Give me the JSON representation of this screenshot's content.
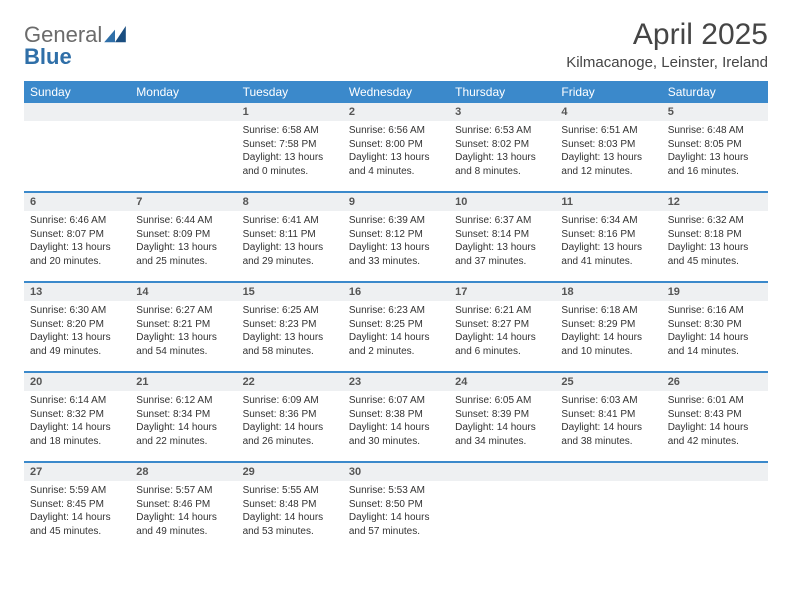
{
  "brand": {
    "part1": "General",
    "part2": "Blue"
  },
  "title": "April 2025",
  "location": "Kilmacanoge, Leinster, Ireland",
  "colors": {
    "header_bg": "#3b89cb",
    "header_text": "#ffffff",
    "daynum_bg": "#eef0f2",
    "text": "#333333",
    "brand_gray": "#6b6b6b",
    "brand_blue": "#2f6fa8"
  },
  "dayHeaders": [
    "Sunday",
    "Monday",
    "Tuesday",
    "Wednesday",
    "Thursday",
    "Friday",
    "Saturday"
  ],
  "weeks": [
    [
      null,
      null,
      {
        "d": "1",
        "sr": "6:58 AM",
        "ss": "7:58 PM",
        "dl": "13 hours and 0 minutes."
      },
      {
        "d": "2",
        "sr": "6:56 AM",
        "ss": "8:00 PM",
        "dl": "13 hours and 4 minutes."
      },
      {
        "d": "3",
        "sr": "6:53 AM",
        "ss": "8:02 PM",
        "dl": "13 hours and 8 minutes."
      },
      {
        "d": "4",
        "sr": "6:51 AM",
        "ss": "8:03 PM",
        "dl": "13 hours and 12 minutes."
      },
      {
        "d": "5",
        "sr": "6:48 AM",
        "ss": "8:05 PM",
        "dl": "13 hours and 16 minutes."
      }
    ],
    [
      {
        "d": "6",
        "sr": "6:46 AM",
        "ss": "8:07 PM",
        "dl": "13 hours and 20 minutes."
      },
      {
        "d": "7",
        "sr": "6:44 AM",
        "ss": "8:09 PM",
        "dl": "13 hours and 25 minutes."
      },
      {
        "d": "8",
        "sr": "6:41 AM",
        "ss": "8:11 PM",
        "dl": "13 hours and 29 minutes."
      },
      {
        "d": "9",
        "sr": "6:39 AM",
        "ss": "8:12 PM",
        "dl": "13 hours and 33 minutes."
      },
      {
        "d": "10",
        "sr": "6:37 AM",
        "ss": "8:14 PM",
        "dl": "13 hours and 37 minutes."
      },
      {
        "d": "11",
        "sr": "6:34 AM",
        "ss": "8:16 PM",
        "dl": "13 hours and 41 minutes."
      },
      {
        "d": "12",
        "sr": "6:32 AM",
        "ss": "8:18 PM",
        "dl": "13 hours and 45 minutes."
      }
    ],
    [
      {
        "d": "13",
        "sr": "6:30 AM",
        "ss": "8:20 PM",
        "dl": "13 hours and 49 minutes."
      },
      {
        "d": "14",
        "sr": "6:27 AM",
        "ss": "8:21 PM",
        "dl": "13 hours and 54 minutes."
      },
      {
        "d": "15",
        "sr": "6:25 AM",
        "ss": "8:23 PM",
        "dl": "13 hours and 58 minutes."
      },
      {
        "d": "16",
        "sr": "6:23 AM",
        "ss": "8:25 PM",
        "dl": "14 hours and 2 minutes."
      },
      {
        "d": "17",
        "sr": "6:21 AM",
        "ss": "8:27 PM",
        "dl": "14 hours and 6 minutes."
      },
      {
        "d": "18",
        "sr": "6:18 AM",
        "ss": "8:29 PM",
        "dl": "14 hours and 10 minutes."
      },
      {
        "d": "19",
        "sr": "6:16 AM",
        "ss": "8:30 PM",
        "dl": "14 hours and 14 minutes."
      }
    ],
    [
      {
        "d": "20",
        "sr": "6:14 AM",
        "ss": "8:32 PM",
        "dl": "14 hours and 18 minutes."
      },
      {
        "d": "21",
        "sr": "6:12 AM",
        "ss": "8:34 PM",
        "dl": "14 hours and 22 minutes."
      },
      {
        "d": "22",
        "sr": "6:09 AM",
        "ss": "8:36 PM",
        "dl": "14 hours and 26 minutes."
      },
      {
        "d": "23",
        "sr": "6:07 AM",
        "ss": "8:38 PM",
        "dl": "14 hours and 30 minutes."
      },
      {
        "d": "24",
        "sr": "6:05 AM",
        "ss": "8:39 PM",
        "dl": "14 hours and 34 minutes."
      },
      {
        "d": "25",
        "sr": "6:03 AM",
        "ss": "8:41 PM",
        "dl": "14 hours and 38 minutes."
      },
      {
        "d": "26",
        "sr": "6:01 AM",
        "ss": "8:43 PM",
        "dl": "14 hours and 42 minutes."
      }
    ],
    [
      {
        "d": "27",
        "sr": "5:59 AM",
        "ss": "8:45 PM",
        "dl": "14 hours and 45 minutes."
      },
      {
        "d": "28",
        "sr": "5:57 AM",
        "ss": "8:46 PM",
        "dl": "14 hours and 49 minutes."
      },
      {
        "d": "29",
        "sr": "5:55 AM",
        "ss": "8:48 PM",
        "dl": "14 hours and 53 minutes."
      },
      {
        "d": "30",
        "sr": "5:53 AM",
        "ss": "8:50 PM",
        "dl": "14 hours and 57 minutes."
      },
      null,
      null,
      null
    ]
  ],
  "labels": {
    "sunrise": "Sunrise:",
    "sunset": "Sunset:",
    "daylight": "Daylight:"
  }
}
